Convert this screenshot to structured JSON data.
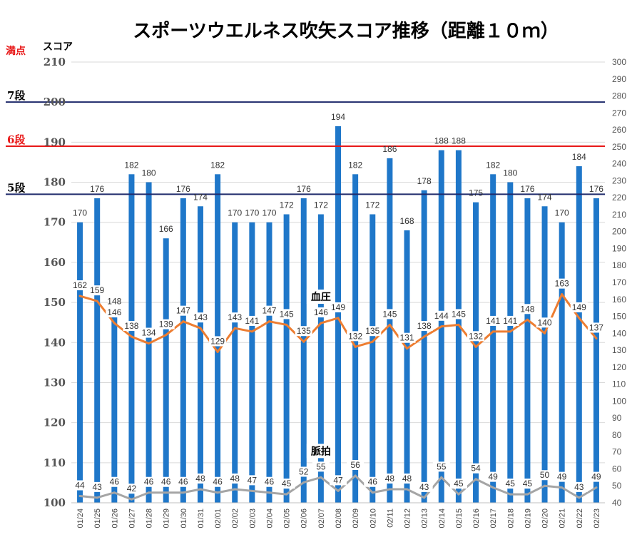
{
  "chart_data": {
    "type": "bar",
    "title": "スポーツウエルネス吹矢スコア推移（距離１０ｍ）",
    "left_axis_label": "スコア",
    "perfect_score_label": "満点",
    "categories": [
      "01/24",
      "01/25",
      "01/26",
      "01/27",
      "01/28",
      "01/29",
      "01/30",
      "01/31",
      "02/01",
      "02/02",
      "02/03",
      "02/04",
      "02/05",
      "02/06",
      "02/07",
      "02/08",
      "02/09",
      "02/10",
      "02/11",
      "02/12",
      "02/13",
      "02/14",
      "02/15",
      "02/16",
      "02/17",
      "02/18",
      "02/19",
      "02/20",
      "02/21",
      "02/22",
      "02/23"
    ],
    "left_ylim": [
      100,
      210
    ],
    "left_ticks": [
      100,
      110,
      120,
      130,
      140,
      150,
      160,
      170,
      180,
      190,
      200,
      210
    ],
    "right_ylim": [
      40,
      300
    ],
    "right_ticks": [
      40,
      50,
      60,
      70,
      80,
      90,
      100,
      110,
      120,
      130,
      140,
      150,
      160,
      170,
      180,
      190,
      200,
      210,
      220,
      230,
      240,
      250,
      260,
      270,
      280,
      290,
      300
    ],
    "grid": true,
    "series": [
      {
        "kind": "bar",
        "axis": "left",
        "color": "#1f77c9",
        "values": [
          170,
          176,
          148,
          182,
          180,
          166,
          176,
          174,
          182,
          170,
          170,
          170,
          172,
          176,
          172,
          194,
          182,
          172,
          186,
          168,
          178,
          188,
          188,
          175,
          182,
          180,
          176,
          174,
          170,
          184,
          176
        ]
      },
      {
        "kind": "line",
        "axis": "right",
        "name": "血圧",
        "color": "#ed7d31",
        "values": [
          162,
          159,
          146,
          138,
          134,
          139,
          147,
          143,
          129,
          143,
          141,
          147,
          145,
          135,
          146,
          149,
          132,
          135,
          145,
          131,
          138,
          144,
          145,
          132,
          141,
          141,
          148,
          140,
          163,
          149,
          137
        ]
      },
      {
        "kind": "line",
        "axis": "right",
        "name": "脈拍",
        "color": "#a5a5a5",
        "values": [
          44,
          43,
          46,
          42,
          46,
          46,
          46,
          48,
          46,
          48,
          47,
          46,
          45,
          52,
          55,
          47,
          56,
          46,
          48,
          48,
          43,
          55,
          45,
          54,
          49,
          45,
          45,
          50,
          49,
          43,
          49
        ]
      }
    ],
    "reference_lines": [
      {
        "label": "7段",
        "value": 200,
        "color": "#1f2a6b",
        "label_color": "#000000"
      },
      {
        "label": "6段",
        "value": 189,
        "color": "#e81818",
        "label_color": "#e81818"
      },
      {
        "label": "5段",
        "value": 177,
        "color": "#1f2a6b",
        "label_color": "#000000"
      }
    ],
    "colors": {
      "perfect_label": "#e81818",
      "bar": "#1f77c9",
      "grid": "#d9d9d9"
    }
  }
}
